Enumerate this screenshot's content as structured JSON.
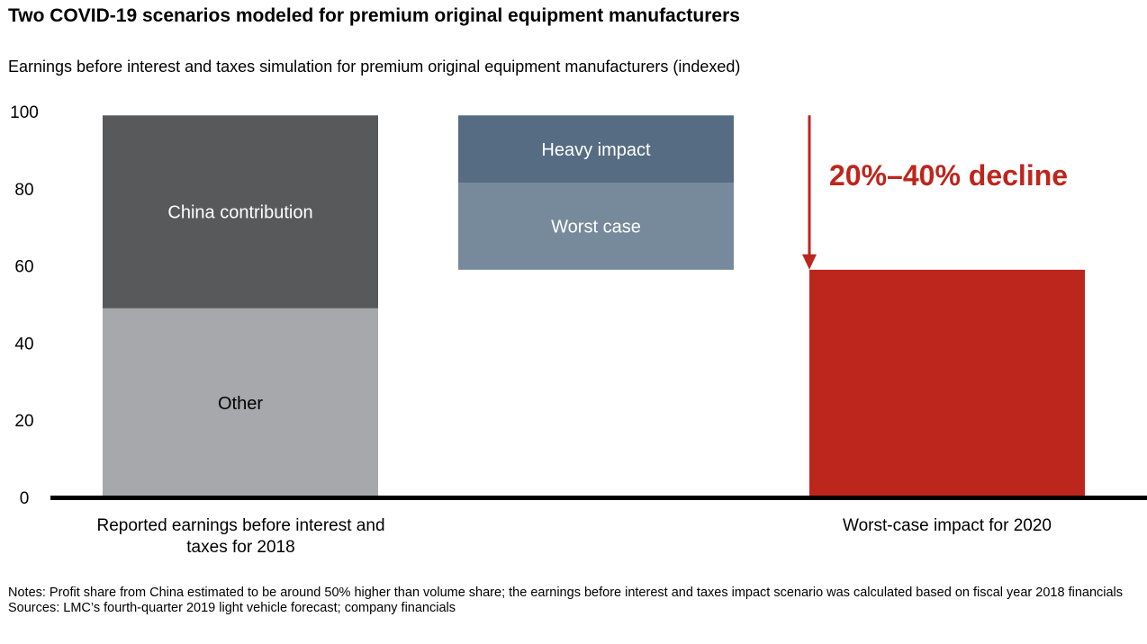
{
  "chart_data": {
    "type": "bar",
    "title": "Two COVID-19 scenarios modeled for premium original equipment manufacturers",
    "subtitle": "Earnings before interest and taxes simulation for premium original equipment manufacturers (indexed)",
    "ylim": [
      0,
      100
    ],
    "yticks": [
      0,
      20,
      40,
      60,
      80,
      100
    ],
    "categories": [
      "Reported earnings before interest and taxes for 2018",
      "",
      "Worst-case impact for 2020"
    ],
    "bars": [
      {
        "category": "Reported earnings before interest and taxes for 2018",
        "segments": [
          {
            "label": "Other",
            "from": 0,
            "to": 49,
            "color": "#a7a8ab"
          },
          {
            "label": "China contribution",
            "from": 49,
            "to": 99,
            "color": "#58595b"
          }
        ]
      },
      {
        "category": "",
        "segments": [
          {
            "label": "Worst case",
            "from": 59,
            "to": 81.5,
            "color": "#778a9b"
          },
          {
            "label": "Heavy impact",
            "from": 81.5,
            "to": 99,
            "color": "#566c82"
          }
        ]
      },
      {
        "category": "Worst-case impact for 2020",
        "segments": [
          {
            "label": "",
            "from": 0,
            "to": 59,
            "color": "#bd261c"
          }
        ]
      }
    ],
    "annotation": {
      "text": "20%–40% decline",
      "color": "#bd261c",
      "arrow_from": 99,
      "arrow_to": 63
    }
  },
  "notes": {
    "line1": "Notes: Profit share from China estimated to be around 50% higher than volume share; the earnings before interest and taxes impact scenario was calculated based on fiscal year 2018 financials",
    "line2": "Sources: LMC’s fourth-quarter 2019 light vehicle forecast; company financials"
  }
}
